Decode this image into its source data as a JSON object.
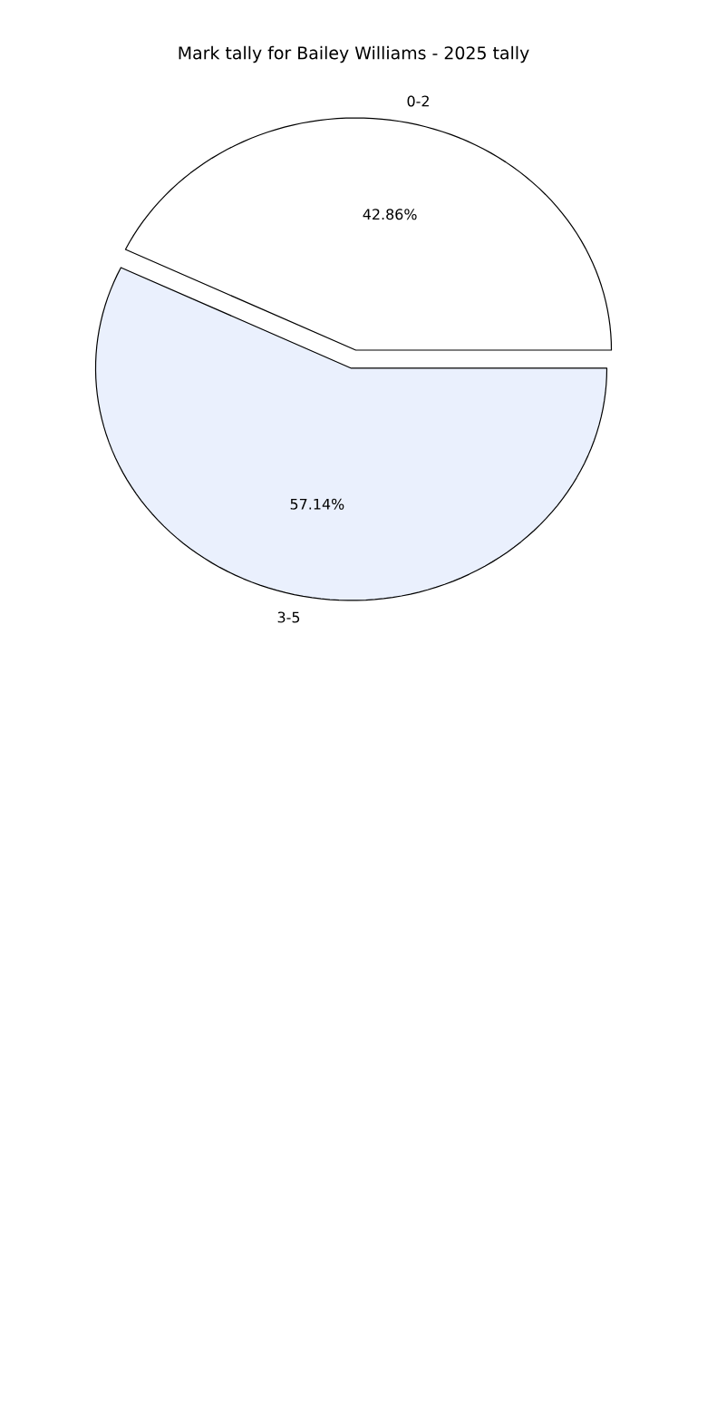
{
  "chart_data": {
    "type": "pie",
    "title": "Mark tally for Bailey Williams - 2025 tally",
    "categories": [
      "0-2",
      "3-5"
    ],
    "values": [
      42.86,
      57.14
    ],
    "colors": [
      "#ffffff",
      "#eaf0fd"
    ],
    "value_labels": [
      "42.86%",
      "57.14%"
    ]
  }
}
